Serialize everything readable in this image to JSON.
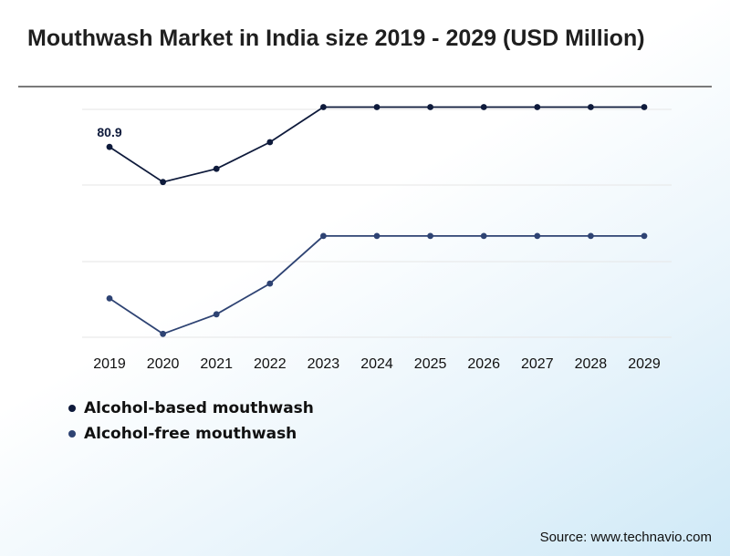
{
  "title": "Mouthwash Market in India size 2019 - 2029 (USD Million)",
  "source": "Source: www.technavio.com",
  "chart_data": {
    "type": "line",
    "title": "Mouthwash Market in India size 2019 - 2029 (USD Million)",
    "x": [
      "2019",
      "2020",
      "2021",
      "2022",
      "2023",
      "2024",
      "2025",
      "2026",
      "2027",
      "2028",
      "2029"
    ],
    "ylim": [
      24.5,
      98.5
    ],
    "grid": true,
    "legend_position": "bottom-left",
    "series": [
      {
        "name": "Alcohol-based mouthwash",
        "color": "#0e1a3b",
        "values": [
          80.9,
          70.5,
          74.4,
          82.3,
          92.7,
          92.7,
          92.7,
          92.7,
          92.7,
          92.7,
          92.7
        ]
      },
      {
        "name": "Alcohol-free mouthwash",
        "color": "#2e4373",
        "values": [
          36.0,
          25.5,
          31.3,
          40.4,
          54.5,
          54.5,
          54.5,
          54.5,
          54.5,
          54.5,
          54.5
        ]
      }
    ],
    "data_labels": [
      {
        "series": 0,
        "index": 0,
        "text": "80.9"
      }
    ]
  }
}
